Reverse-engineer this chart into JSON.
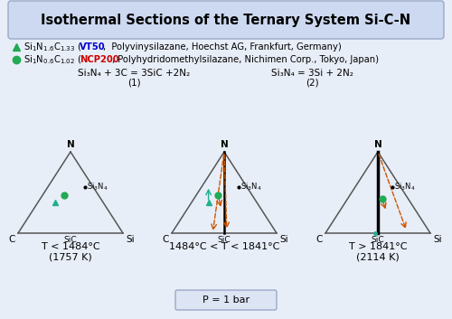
{
  "title": "Isothermal Sections of the Ternary System Si-C-N",
  "title_bg": "#ccd9f0",
  "bg_color": "#e8eef8",
  "legend1_colored": "VT50",
  "legend1_colored_color": "#0000cc",
  "legend2_colored": "NCP200",
  "legend2_colored_color": "#cc0000",
  "eq1": "Si₃N₄ + 3C = 3SiC +2N₂",
  "eq1_label": "(1)",
  "eq2": "Si₃N₄ = 3Si + 2N₂",
  "eq2_label": "(2)",
  "temp1": "T < 1484°C\n(1757 K)",
  "temp2": "1484°C < T < 1841°C",
  "temp3": "T > 1841°C\n(2114 K)",
  "pressure": "P = 1 bar",
  "triangle_color": "#555555",
  "dot_color_teal": "#20b090",
  "dot_color_green": "#22aa55",
  "arrow_orange": "#cc5500",
  "legend_tri_color": "#22aa55"
}
